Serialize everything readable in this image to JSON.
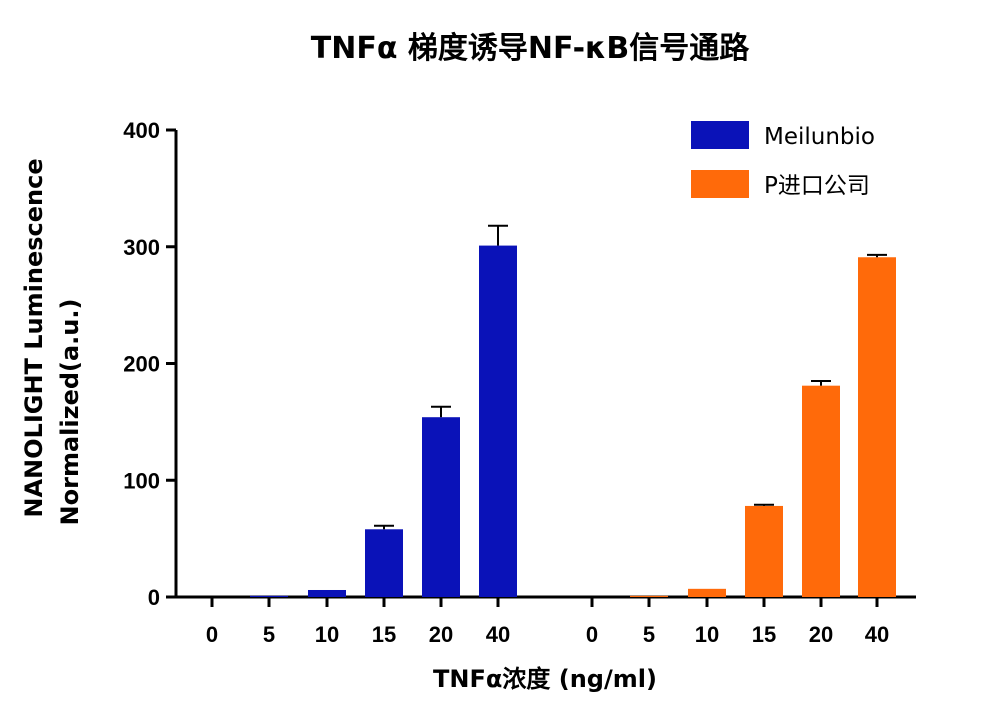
{
  "chart_data": {
    "type": "bar",
    "title": "TNFα 梯度诱导NF-κB信号通路",
    "xlabel": "TNFα浓度 (ng/ml)",
    "ylabel_line1": "NANOLIGHT Luminescence",
    "ylabel_line2": "Normalized(a.u.)",
    "ylim": [
      0,
      400
    ],
    "yticks": [
      "0",
      "100",
      "200",
      "300",
      "400"
    ],
    "categories": [
      "0",
      "5",
      "10",
      "15",
      "20",
      "40"
    ],
    "legend_position": "top-right",
    "grid": false,
    "series": [
      {
        "name": "Meilunbio",
        "color": "#0a12b8",
        "values": [
          0,
          1,
          6,
          58,
          154,
          301
        ],
        "errors": [
          0,
          0,
          0,
          3,
          9,
          17
        ]
      },
      {
        "name": "P进口公司",
        "color": "#ff6a0a",
        "values": [
          0,
          1,
          7,
          78,
          181,
          291
        ],
        "errors": [
          0,
          0,
          0,
          1,
          4,
          2
        ]
      }
    ]
  }
}
